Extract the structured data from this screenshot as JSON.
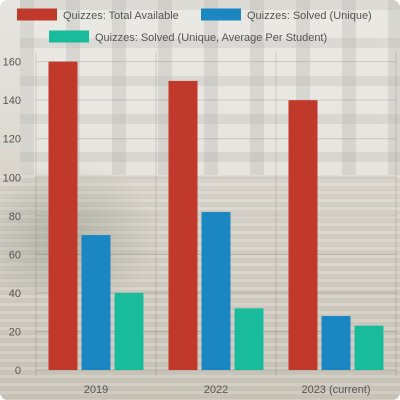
{
  "chart_data": {
    "type": "bar",
    "title": "",
    "xlabel": "",
    "ylabel": "",
    "categories": [
      "2019",
      "2022",
      "2023 (current)"
    ],
    "series": [
      {
        "name": "Quizzes: Total Available",
        "color": "#c0392b",
        "values": [
          160,
          150,
          140
        ]
      },
      {
        "name": "Quizzes: Solved (Unique)",
        "color": "#1a86c2",
        "values": [
          70,
          82,
          28
        ]
      },
      {
        "name": "Quizzes: Solved (Unique, Average Per Student)",
        "color": "#18bc9c",
        "values": [
          40,
          32,
          23
        ]
      }
    ],
    "ylim": [
      0,
      165
    ],
    "yticks": [
      0,
      20,
      40,
      60,
      80,
      100,
      120,
      140,
      160
    ],
    "grid": true,
    "legend_position": "top"
  }
}
